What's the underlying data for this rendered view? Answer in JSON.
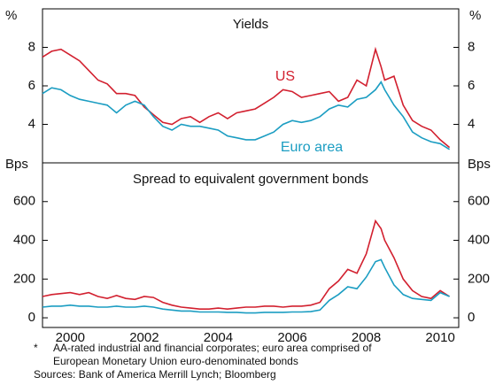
{
  "chart_data": [
    {
      "type": "line",
      "title": "Yields",
      "ylabel": "%",
      "y2label": "%",
      "x": [
        1999.75,
        2000,
        2000.25,
        2000.5,
        2000.75,
        2001,
        2001.25,
        2001.5,
        2001.75,
        2002,
        2002.25,
        2002.5,
        2002.75,
        2003,
        2003.25,
        2003.5,
        2003.75,
        2004,
        2004.25,
        2004.5,
        2004.75,
        2005,
        2005.25,
        2005.5,
        2005.75,
        2006,
        2006.25,
        2006.5,
        2006.75,
        2007,
        2007.25,
        2007.5,
        2007.75,
        2008,
        2008.25,
        2008.5,
        2008.75,
        2008.9,
        2009,
        2009.25,
        2009.5,
        2009.75,
        2010,
        2010.25,
        2010.5,
        2010.75
      ],
      "series": [
        {
          "name": "US",
          "color": "#d2202f",
          "values": [
            7.5,
            7.8,
            7.9,
            7.6,
            7.3,
            6.8,
            6.3,
            6.1,
            5.6,
            5.6,
            5.5,
            4.9,
            4.5,
            4.1,
            4.0,
            4.3,
            4.4,
            4.1,
            4.4,
            4.6,
            4.3,
            4.6,
            4.7,
            4.8,
            5.1,
            5.4,
            5.8,
            5.7,
            5.4,
            5.5,
            5.6,
            5.7,
            5.2,
            5.4,
            6.3,
            6.0,
            7.9,
            7.0,
            6.3,
            6.5,
            5.0,
            4.2,
            3.9,
            3.7,
            3.2,
            2.8
          ]
        },
        {
          "name": "Euro area",
          "color": "#1b9dc2",
          "values": [
            5.6,
            5.9,
            5.8,
            5.5,
            5.3,
            5.2,
            5.1,
            5.0,
            4.6,
            5.0,
            5.2,
            5.0,
            4.4,
            3.9,
            3.7,
            4.0,
            3.9,
            3.9,
            3.8,
            3.7,
            3.4,
            3.3,
            3.2,
            3.2,
            3.4,
            3.6,
            4.0,
            4.2,
            4.1,
            4.2,
            4.4,
            4.8,
            5.0,
            4.9,
            5.3,
            5.4,
            5.8,
            6.2,
            5.8,
            5.0,
            4.4,
            3.6,
            3.3,
            3.1,
            3.0,
            2.7
          ]
        }
      ],
      "xlim": [
        1999.75,
        2011
      ],
      "ylim": [
        2,
        10
      ],
      "yticks": [
        4,
        6,
        8
      ]
    },
    {
      "type": "line",
      "title": "Spread to equivalent government bonds",
      "ylabel": "Bps",
      "y2label": "Bps",
      "x": [
        1999.75,
        2000,
        2000.25,
        2000.5,
        2000.75,
        2001,
        2001.25,
        2001.5,
        2001.75,
        2002,
        2002.25,
        2002.5,
        2002.75,
        2003,
        2003.25,
        2003.5,
        2003.75,
        2004,
        2004.25,
        2004.5,
        2004.75,
        2005,
        2005.25,
        2005.5,
        2005.75,
        2006,
        2006.25,
        2006.5,
        2006.75,
        2007,
        2007.25,
        2007.5,
        2007.75,
        2008,
        2008.25,
        2008.5,
        2008.75,
        2008.9,
        2009,
        2009.25,
        2009.5,
        2009.75,
        2010,
        2010.25,
        2010.5,
        2010.75
      ],
      "series": [
        {
          "name": "US",
          "color": "#d2202f",
          "values": [
            110,
            120,
            125,
            130,
            120,
            130,
            110,
            100,
            115,
            100,
            95,
            110,
            105,
            80,
            65,
            55,
            50,
            45,
            45,
            50,
            45,
            50,
            55,
            55,
            60,
            60,
            55,
            60,
            60,
            65,
            80,
            150,
            190,
            250,
            230,
            330,
            500,
            460,
            400,
            310,
            200,
            140,
            110,
            100,
            140,
            110
          ]
        },
        {
          "name": "Euro area",
          "color": "#1b9dc2",
          "values": [
            55,
            60,
            60,
            65,
            60,
            60,
            55,
            55,
            60,
            55,
            55,
            60,
            55,
            45,
            40,
            35,
            35,
            30,
            30,
            30,
            28,
            28,
            25,
            25,
            28,
            28,
            28,
            30,
            30,
            32,
            40,
            90,
            120,
            160,
            150,
            210,
            290,
            300,
            260,
            170,
            120,
            100,
            95,
            90,
            130,
            110
          ]
        }
      ],
      "xlim": [
        1999.75,
        2011
      ],
      "ylim": [
        -50,
        800
      ],
      "yticks": [
        0,
        200,
        400,
        600
      ],
      "xticks": [
        {
          "value": 2000.5,
          "label": "2000"
        },
        {
          "value": 2002.5,
          "label": "2002"
        },
        {
          "value": 2004.5,
          "label": "2004"
        },
        {
          "value": 2006.5,
          "label": "2006"
        },
        {
          "value": 2008.5,
          "label": "2008"
        },
        {
          "value": 2010.5,
          "label": "2010"
        }
      ]
    }
  ],
  "footnotes": {
    "marker": "*",
    "note_lines": [
      "AA-rated industrial and financial corporates; euro area comprised of",
      "European Monetary Union euro-denominated bonds"
    ],
    "sources": "Sources: Bank of America Merrill Lynch; Bloomberg"
  }
}
